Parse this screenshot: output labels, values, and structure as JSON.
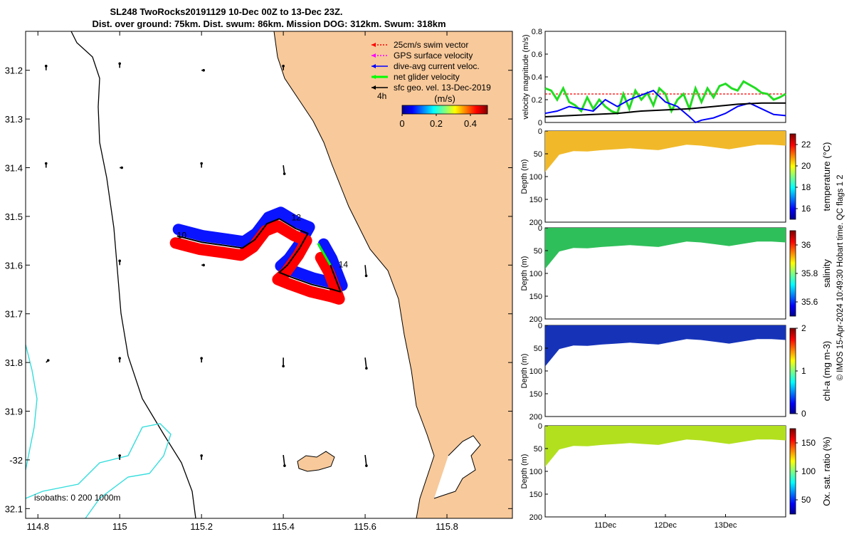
{
  "title": {
    "line1": "SL248 TwoRocks20191129 10-Dec 00Z to 13-Dec 23Z.",
    "line2": "Dist. over ground: 75km. Dist. swum: 86km. Mission DOG: 312km. Swum: 318km"
  },
  "footer_stamp": "© IMOS 15-Apr-2024 10:49:30 Hobart time. QC flags 1  2",
  "chart_data": [
    {
      "type": "map",
      "id": "track-map",
      "xlim": [
        114.77,
        115.96
      ],
      "ylim": [
        -32.12,
        -31.12
      ],
      "x_ticks": [
        114.8,
        115,
        115.2,
        115.4,
        115.6,
        115.8
      ],
      "x_tick_labels": [
        "114.8",
        "115",
        "115.2",
        "115.4",
        "115.6",
        "115.8"
      ],
      "y_ticks": [
        -31.2,
        -31.3,
        -31.4,
        -31.5,
        -31.6,
        -31.7,
        -31.8,
        -31.9,
        -32.0,
        -32.1
      ],
      "y_tick_labels": [
        "31.2",
        "31.3",
        "31.4",
        "31.5",
        "31.6",
        "31.7",
        "31.8",
        "31.9",
        "-32",
        "32.1"
      ],
      "legend": {
        "position": "top-right",
        "items": [
          {
            "label": "25cm/s swim vector",
            "color": "#ff0000",
            "style": "dotted"
          },
          {
            "label": "GPS surface velocity",
            "color": "#ff00ff",
            "style": "dotted"
          },
          {
            "label": "dive-avg current veloc.",
            "color": "#0000ff",
            "style": "solid"
          },
          {
            "label": "net glider velocity",
            "color": "#00ff00",
            "style": "thick"
          },
          {
            "label": "sfc geo. vel. 13-Dec-2019",
            "color": "#000000",
            "style": "solid"
          }
        ]
      },
      "colorbar": {
        "label": "(m/s)",
        "ticks": [
          "0",
          "0.2",
          "0.4"
        ],
        "range": [
          0,
          0.5
        ],
        "colormap": "jet"
      },
      "time_marker": "4h",
      "track_day_labels": [
        {
          "label": "10",
          "lon": 115.14,
          "lat": -31.545
        },
        {
          "label": "12",
          "lon": 115.42,
          "lat": -31.508
        },
        {
          "label": "14",
          "lon": 115.535,
          "lat": -31.605
        }
      ],
      "track": [
        {
          "lon": 115.14,
          "lat": -31.54
        },
        {
          "lon": 115.2,
          "lat": -31.553
        },
        {
          "lon": 115.26,
          "lat": -31.56
        },
        {
          "lon": 115.3,
          "lat": -31.565
        },
        {
          "lon": 115.33,
          "lat": -31.548
        },
        {
          "lon": 115.36,
          "lat": -31.515
        },
        {
          "lon": 115.39,
          "lat": -31.505
        },
        {
          "lon": 115.43,
          "lat": -31.525
        },
        {
          "lon": 115.46,
          "lat": -31.535
        },
        {
          "lon": 115.44,
          "lat": -31.565
        },
        {
          "lon": 115.41,
          "lat": -31.6
        },
        {
          "lon": 115.39,
          "lat": -31.615
        },
        {
          "lon": 115.42,
          "lat": -31.625
        },
        {
          "lon": 115.47,
          "lat": -31.64
        },
        {
          "lon": 115.52,
          "lat": -31.65
        },
        {
          "lon": 115.54,
          "lat": -31.655
        },
        {
          "lon": 115.515,
          "lat": -31.6
        },
        {
          "lon": 115.495,
          "lat": -31.57
        }
      ],
      "isobaths": {
        "label": "isobaths: 0   200  1000m",
        "values": [
          0,
          200,
          1000
        ]
      },
      "sfc_geo_vectors": [
        {
          "lon": 114.82,
          "lat": -31.2,
          "u": 0.0,
          "v": 0.02
        },
        {
          "lon": 115.0,
          "lat": -31.195,
          "u": 0.0,
          "v": 0.02
        },
        {
          "lon": 115.2,
          "lat": -31.2,
          "u": 0.01,
          "v": 0.0
        },
        {
          "lon": 115.4,
          "lat": -31.2,
          "u": 0.0,
          "v": 0.02
        },
        {
          "lon": 114.82,
          "lat": -31.4,
          "u": 0.0,
          "v": 0.02
        },
        {
          "lon": 115.0,
          "lat": -31.4,
          "u": 0.01,
          "v": 0.0
        },
        {
          "lon": 115.2,
          "lat": -31.4,
          "u": 0.0,
          "v": 0.02
        },
        {
          "lon": 115.4,
          "lat": -31.395,
          "u": 0.005,
          "v": -0.04
        },
        {
          "lon": 115.0,
          "lat": -31.6,
          "u": 0.0,
          "v": 0.02
        },
        {
          "lon": 115.2,
          "lat": -31.6,
          "u": 0.01,
          "v": 0.0
        },
        {
          "lon": 115.6,
          "lat": -31.6,
          "u": 0.005,
          "v": -0.05
        },
        {
          "lon": 114.82,
          "lat": -31.8,
          "u": 0.01,
          "v": 0.01
        },
        {
          "lon": 115.0,
          "lat": -31.8,
          "u": 0.0,
          "v": 0.02
        },
        {
          "lon": 115.2,
          "lat": -31.8,
          "u": 0.0,
          "v": 0.02
        },
        {
          "lon": 115.4,
          "lat": -31.79,
          "u": 0.0,
          "v": -0.04
        },
        {
          "lon": 115.6,
          "lat": -31.79,
          "u": 0.006,
          "v": -0.05
        },
        {
          "lon": 115.0,
          "lat": -32.0,
          "u": 0.0,
          "v": 0.02
        },
        {
          "lon": 115.2,
          "lat": -32.0,
          "u": 0.0,
          "v": 0.02
        },
        {
          "lon": 115.4,
          "lat": -31.99,
          "u": 0.006,
          "v": -0.05
        },
        {
          "lon": 115.6,
          "lat": -31.99,
          "u": 0.006,
          "v": -0.05
        }
      ]
    },
    {
      "type": "line",
      "id": "velocity-panel",
      "ylabel": "velocity magnitude (m/s)",
      "xlim": [
        0,
        4
      ],
      "ylim": [
        0,
        0.8
      ],
      "y_ticks": [
        0,
        0.2,
        0.4,
        0.6,
        0.8
      ],
      "series": [
        {
          "color": "#ff0000",
          "style": "dotted",
          "x": [
            0,
            4
          ],
          "y": [
            0.25,
            0.25
          ]
        },
        {
          "color": "#22dd22",
          "style": "thick",
          "x": [
            0,
            0.1,
            0.2,
            0.3,
            0.4,
            0.5,
            0.6,
            0.7,
            0.8,
            0.9,
            1.0,
            1.1,
            1.2,
            1.3,
            1.4,
            1.5,
            1.6,
            1.7,
            1.8,
            1.9,
            2.0,
            2.1,
            2.2,
            2.3,
            2.4,
            2.5,
            2.6,
            2.7,
            2.8,
            2.9,
            3.0,
            3.1,
            3.2,
            3.3,
            3.4,
            3.5,
            3.6,
            3.7,
            3.8,
            3.9,
            4.0
          ],
          "y": [
            0.3,
            0.28,
            0.2,
            0.3,
            0.18,
            0.15,
            0.1,
            0.22,
            0.12,
            0.2,
            0.14,
            0.1,
            0.08,
            0.25,
            0.12,
            0.28,
            0.2,
            0.26,
            0.15,
            0.3,
            0.25,
            0.1,
            0.2,
            0.25,
            0.12,
            0.3,
            0.18,
            0.3,
            0.22,
            0.32,
            0.34,
            0.3,
            0.28,
            0.36,
            0.33,
            0.3,
            0.26,
            0.25,
            0.2,
            0.22,
            0.25
          ]
        },
        {
          "color": "#0000ff",
          "style": "solid",
          "x": [
            0,
            0.2,
            0.4,
            0.6,
            0.8,
            1.0,
            1.2,
            1.4,
            1.6,
            1.8,
            2.0,
            2.2,
            2.4,
            2.5,
            2.6,
            2.8,
            3.0,
            3.2,
            3.4,
            3.6,
            3.8,
            4.0
          ],
          "y": [
            0.08,
            0.1,
            0.14,
            0.12,
            0.1,
            0.2,
            0.14,
            0.2,
            0.24,
            0.28,
            0.18,
            0.14,
            0.05,
            0.0,
            0.02,
            0.04,
            0.08,
            0.14,
            0.17,
            0.12,
            0.07,
            0.06
          ]
        },
        {
          "color": "#000000",
          "style": "solid",
          "x": [
            0,
            0.4,
            0.8,
            1.2,
            1.6,
            2.0,
            2.4,
            2.8,
            3.2,
            3.6,
            4.0
          ],
          "y": [
            0.05,
            0.06,
            0.07,
            0.08,
            0.1,
            0.11,
            0.12,
            0.14,
            0.16,
            0.17,
            0.17
          ]
        }
      ]
    },
    {
      "type": "heatmap",
      "id": "temperature-panel",
      "ylabel": "Depth (m)",
      "ylim": [
        200,
        0
      ],
      "y_ticks": [
        0,
        50,
        100,
        150,
        200
      ],
      "colorbar": {
        "label": "temperature (°C)",
        "range": [
          15,
          23
        ],
        "ticks": [
          16,
          18,
          20,
          22
        ]
      },
      "fill_color": "#f1b92a",
      "profile_depth_m": [
        90,
        52,
        44,
        45,
        42,
        40,
        38,
        40,
        42,
        36,
        30,
        32,
        36,
        40,
        35,
        30,
        30,
        32
      ]
    },
    {
      "type": "heatmap",
      "id": "salinity-panel",
      "ylabel": "Depth (m)",
      "ylim": [
        200,
        0
      ],
      "y_ticks": [
        0,
        50,
        100,
        150,
        200
      ],
      "colorbar": {
        "label": "salinity",
        "range": [
          35.5,
          36.1
        ],
        "ticks": [
          35.6,
          35.8,
          36
        ]
      },
      "fill_color": "#2fbf5a",
      "profile_depth_m": [
        90,
        52,
        44,
        45,
        42,
        40,
        38,
        40,
        42,
        36,
        30,
        32,
        36,
        40,
        35,
        30,
        30,
        32
      ]
    },
    {
      "type": "heatmap",
      "id": "chla-panel",
      "ylabel": "Depth (m)",
      "ylim": [
        200,
        0
      ],
      "y_ticks": [
        0,
        50,
        100,
        150,
        200
      ],
      "colorbar": {
        "label": "chl-a (mg m-3)",
        "range": [
          0,
          2
        ],
        "ticks": [
          0,
          1,
          2
        ]
      },
      "fill_color": "#1633b8",
      "profile_depth_m": [
        90,
        52,
        44,
        45,
        42,
        40,
        38,
        40,
        42,
        36,
        30,
        32,
        36,
        40,
        35,
        30,
        30,
        32
      ]
    },
    {
      "type": "heatmap",
      "id": "oxygen-panel",
      "ylabel": "Depth (m)",
      "ylim": [
        200,
        0
      ],
      "y_ticks": [
        0,
        50,
        100,
        150,
        200
      ],
      "x_tick_labels": [
        "11Dec",
        "12Dec",
        "13Dec"
      ],
      "x_tick_positions": [
        1,
        2,
        3
      ],
      "xlim": [
        0,
        4
      ],
      "colorbar": {
        "label": "Ox. sat. ratio (%)",
        "range": [
          25,
          175
        ],
        "ticks": [
          50,
          100,
          150
        ]
      },
      "fill_color": "#b2e01f",
      "profile_depth_m": [
        90,
        52,
        44,
        45,
        42,
        40,
        38,
        40,
        42,
        36,
        30,
        32,
        36,
        40,
        35,
        30,
        30,
        32
      ]
    }
  ]
}
